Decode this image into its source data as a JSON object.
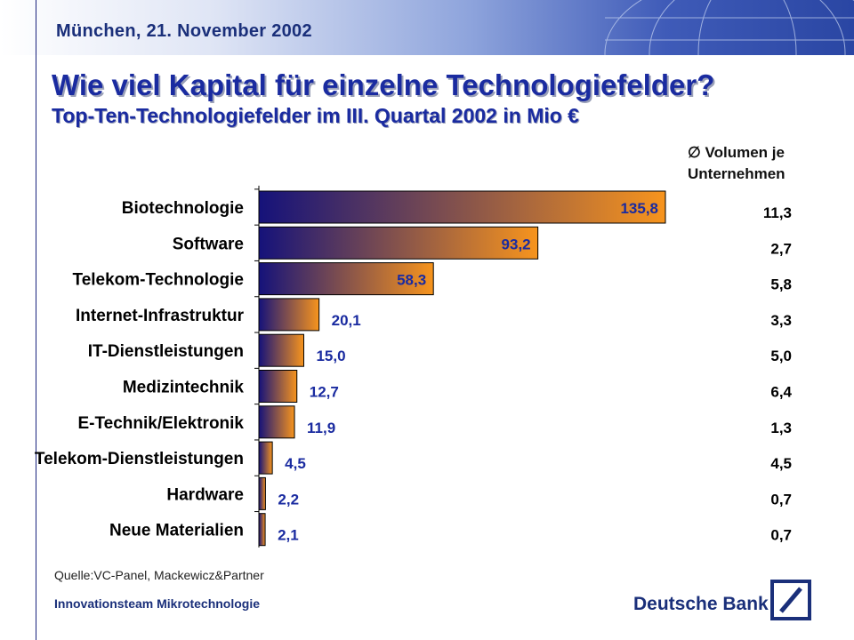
{
  "header": {
    "date": "München, 21. November 2002",
    "title": "Wie viel Kapital für einzelne Technologiefelder?",
    "subtitle": "Top-Ten-Technologiefelder im III. Quartal 2002 in Mio €"
  },
  "volume_header": {
    "line1": "∅ Volumen je",
    "line2": "Unternehmen"
  },
  "chart_data": {
    "type": "bar",
    "orientation": "horizontal",
    "categories": [
      "Biotechnologie",
      "Software",
      "Telekom-Technologie",
      "Internet-Infrastruktur",
      "IT-Dienstleistungen",
      "Medizintechnik",
      "E-Technik/Elektronik",
      "Telekom-Dienstleistungen",
      "Hardware",
      "Neue Materialien"
    ],
    "values": [
      135.8,
      93.2,
      58.3,
      20.1,
      15.0,
      12.7,
      11.9,
      4.5,
      2.2,
      2.1
    ],
    "value_labels": [
      "135,8",
      "93,2",
      "58,3",
      "20,1",
      "15,0",
      "12,7",
      "11,9",
      "4,5",
      "2,2",
      "2,1"
    ],
    "volume_per_company": [
      "11,3",
      "2,7",
      "5,8",
      "3,3",
      "5,0",
      "6,4",
      "1,3",
      "4,5",
      "0,7",
      "0,7"
    ],
    "colors": {
      "bar_start": "#15127a",
      "bar_end": "#f7941d",
      "value_label": "#1a2ba0"
    },
    "grid": false,
    "legend": "none"
  },
  "footer": {
    "source": "Quelle:VC-Panel, Mackewicz&Partner",
    "team": "Innovationsteam Mikrotechnologie",
    "bank": "Deutsche Bank"
  }
}
